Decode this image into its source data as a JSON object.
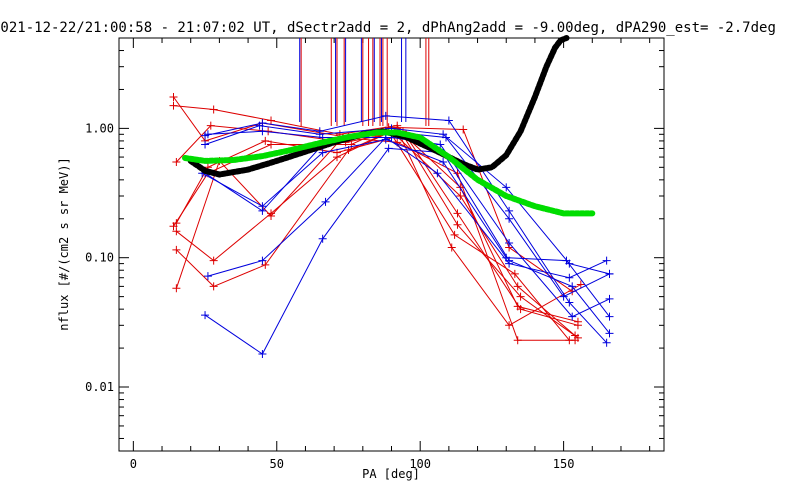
{
  "chart_data": {
    "type": "scatter",
    "title": "2021-12-22/21:00:58 - 21:07:02 UT, dSectr2add = 2, dPhAng2add = -9.00deg, dPA290_est=  -2.7deg",
    "xlabel": "PA [deg]",
    "ylabel": "nflux [#/(cm2 s sr MeV)]",
    "xlim": [
      -5,
      185
    ],
    "ylim": [
      0.0032,
      5.0
    ],
    "yscale": "log",
    "grid": false,
    "x_ticks": [
      0,
      50,
      100,
      150
    ],
    "x_tick_labels": [
      "0",
      "50",
      "100",
      "150"
    ],
    "y_ticks": [
      0.01,
      0.1,
      1.0
    ],
    "y_tick_labels": [
      "0.01",
      "0.10",
      "1.00"
    ],
    "colors": {
      "red": "#dd0000",
      "blue": "#0000dd",
      "black": "#000000",
      "green": "#00dd00"
    },
    "red_markers": [
      58.5,
      69,
      71,
      73.5,
      80,
      82,
      83.5,
      86,
      87,
      88.5,
      102,
      103
    ],
    "blue_markers": [
      58,
      70.5,
      74,
      79.5,
      84,
      86.5,
      93.5,
      95
    ],
    "red_series": [
      {
        "x": [
          14,
          25,
          45,
          75,
          90,
          112,
          133,
          152
        ],
        "y": [
          1.75,
          0.8,
          1.1,
          0.85,
          0.9,
          0.15,
          0.075,
          0.023
        ]
      },
      {
        "x": [
          14,
          28,
          48,
          72,
          92,
          113,
          135,
          155
        ],
        "y": [
          1.5,
          1.4,
          1.15,
          0.9,
          1.05,
          0.18,
          0.05,
          0.024
        ]
      },
      {
        "x": [
          15,
          27,
          47,
          74,
          94,
          113,
          135,
          155
        ],
        "y": [
          0.55,
          1.05,
          0.95,
          0.78,
          0.95,
          0.22,
          0.04,
          0.03
        ]
      },
      {
        "x": [
          15,
          26,
          46,
          71,
          93,
          111,
          131,
          156
        ],
        "y": [
          0.185,
          0.5,
          0.8,
          0.65,
          0.88,
          0.12,
          0.03,
          0.062
        ]
      },
      {
        "x": [
          15,
          28,
          48,
          71,
          90,
          114,
          134,
          154
        ],
        "y": [
          0.16,
          0.095,
          0.22,
          0.6,
          0.95,
          0.3,
          0.06,
          0.025
        ]
      },
      {
        "x": [
          15,
          28,
          46,
          75,
          92,
          114,
          134,
          155
        ],
        "y": [
          0.115,
          0.06,
          0.088,
          0.68,
          1.0,
          0.35,
          0.042,
          0.032
        ]
      },
      {
        "x": [
          15,
          30,
          48,
          73,
          92,
          113,
          134,
          154
        ],
        "y": [
          0.058,
          0.56,
          0.21,
          0.85,
          0.78,
          0.45,
          0.023,
          0.023
        ]
      },
      {
        "x": [
          14,
          26,
          48,
          76,
          89,
          115,
          131,
          153
        ],
        "y": [
          0.175,
          0.45,
          0.75,
          0.75,
          1.02,
          0.98,
          0.12,
          0.055
        ]
      }
    ],
    "blue_series": [
      {
        "x": [
          25,
          45,
          65,
          88,
          110,
          131,
          152,
          165
        ],
        "y": [
          0.88,
          1.1,
          0.95,
          1.25,
          1.15,
          0.23,
          0.045,
          0.022
        ]
      },
      {
        "x": [
          25,
          44,
          65,
          90,
          108,
          130,
          152,
          166
        ],
        "y": [
          0.75,
          1.05,
          0.9,
          1.0,
          0.9,
          0.35,
          0.09,
          0.075
        ]
      },
      {
        "x": [
          26,
          45,
          66,
          90,
          107,
          131,
          153,
          166
        ],
        "y": [
          0.9,
          0.95,
          0.85,
          0.85,
          0.75,
          0.13,
          0.035,
          0.048
        ]
      },
      {
        "x": [
          24,
          45,
          66,
          88,
          108,
          130,
          151,
          166
        ],
        "y": [
          0.45,
          0.25,
          0.65,
          0.82,
          0.55,
          0.1,
          0.095,
          0.035
        ]
      },
      {
        "x": [
          26,
          45,
          67,
          88,
          106,
          131,
          152,
          165
        ],
        "y": [
          0.072,
          0.095,
          0.27,
          0.85,
          0.45,
          0.09,
          0.07,
          0.095
        ]
      },
      {
        "x": [
          25,
          45,
          66,
          89,
          108,
          131,
          153,
          166
        ],
        "y": [
          0.036,
          0.018,
          0.14,
          0.7,
          0.65,
          0.095,
          0.06,
          0.026
        ]
      },
      {
        "x": [
          25,
          45,
          66,
          88,
          109,
          131,
          150,
          166
        ],
        "y": [
          0.45,
          0.23,
          0.75,
          0.95,
          0.85,
          0.2,
          0.05,
          0.075
        ]
      }
    ],
    "black_curve": {
      "name": "",
      "x": [
        20,
        25,
        30,
        40,
        50,
        60,
        70,
        80,
        87,
        95,
        105,
        115,
        120,
        125,
        130,
        135,
        140,
        144,
        147,
        149,
        151
      ],
      "y": [
        0.56,
        0.47,
        0.44,
        0.48,
        0.56,
        0.66,
        0.78,
        0.9,
        0.95,
        0.86,
        0.68,
        0.53,
        0.48,
        0.5,
        0.62,
        0.95,
        1.75,
        3.0,
        4.2,
        4.8,
        5.0
      ]
    },
    "green_curve": {
      "name": "",
      "x": [
        18,
        25,
        35,
        45,
        55,
        65,
        75,
        85,
        92,
        100,
        110,
        120,
        130,
        140,
        150,
        160
      ],
      "y": [
        0.59,
        0.56,
        0.57,
        0.61,
        0.68,
        0.77,
        0.86,
        0.93,
        0.93,
        0.85,
        0.6,
        0.4,
        0.3,
        0.25,
        0.22,
        0.22
      ]
    }
  }
}
